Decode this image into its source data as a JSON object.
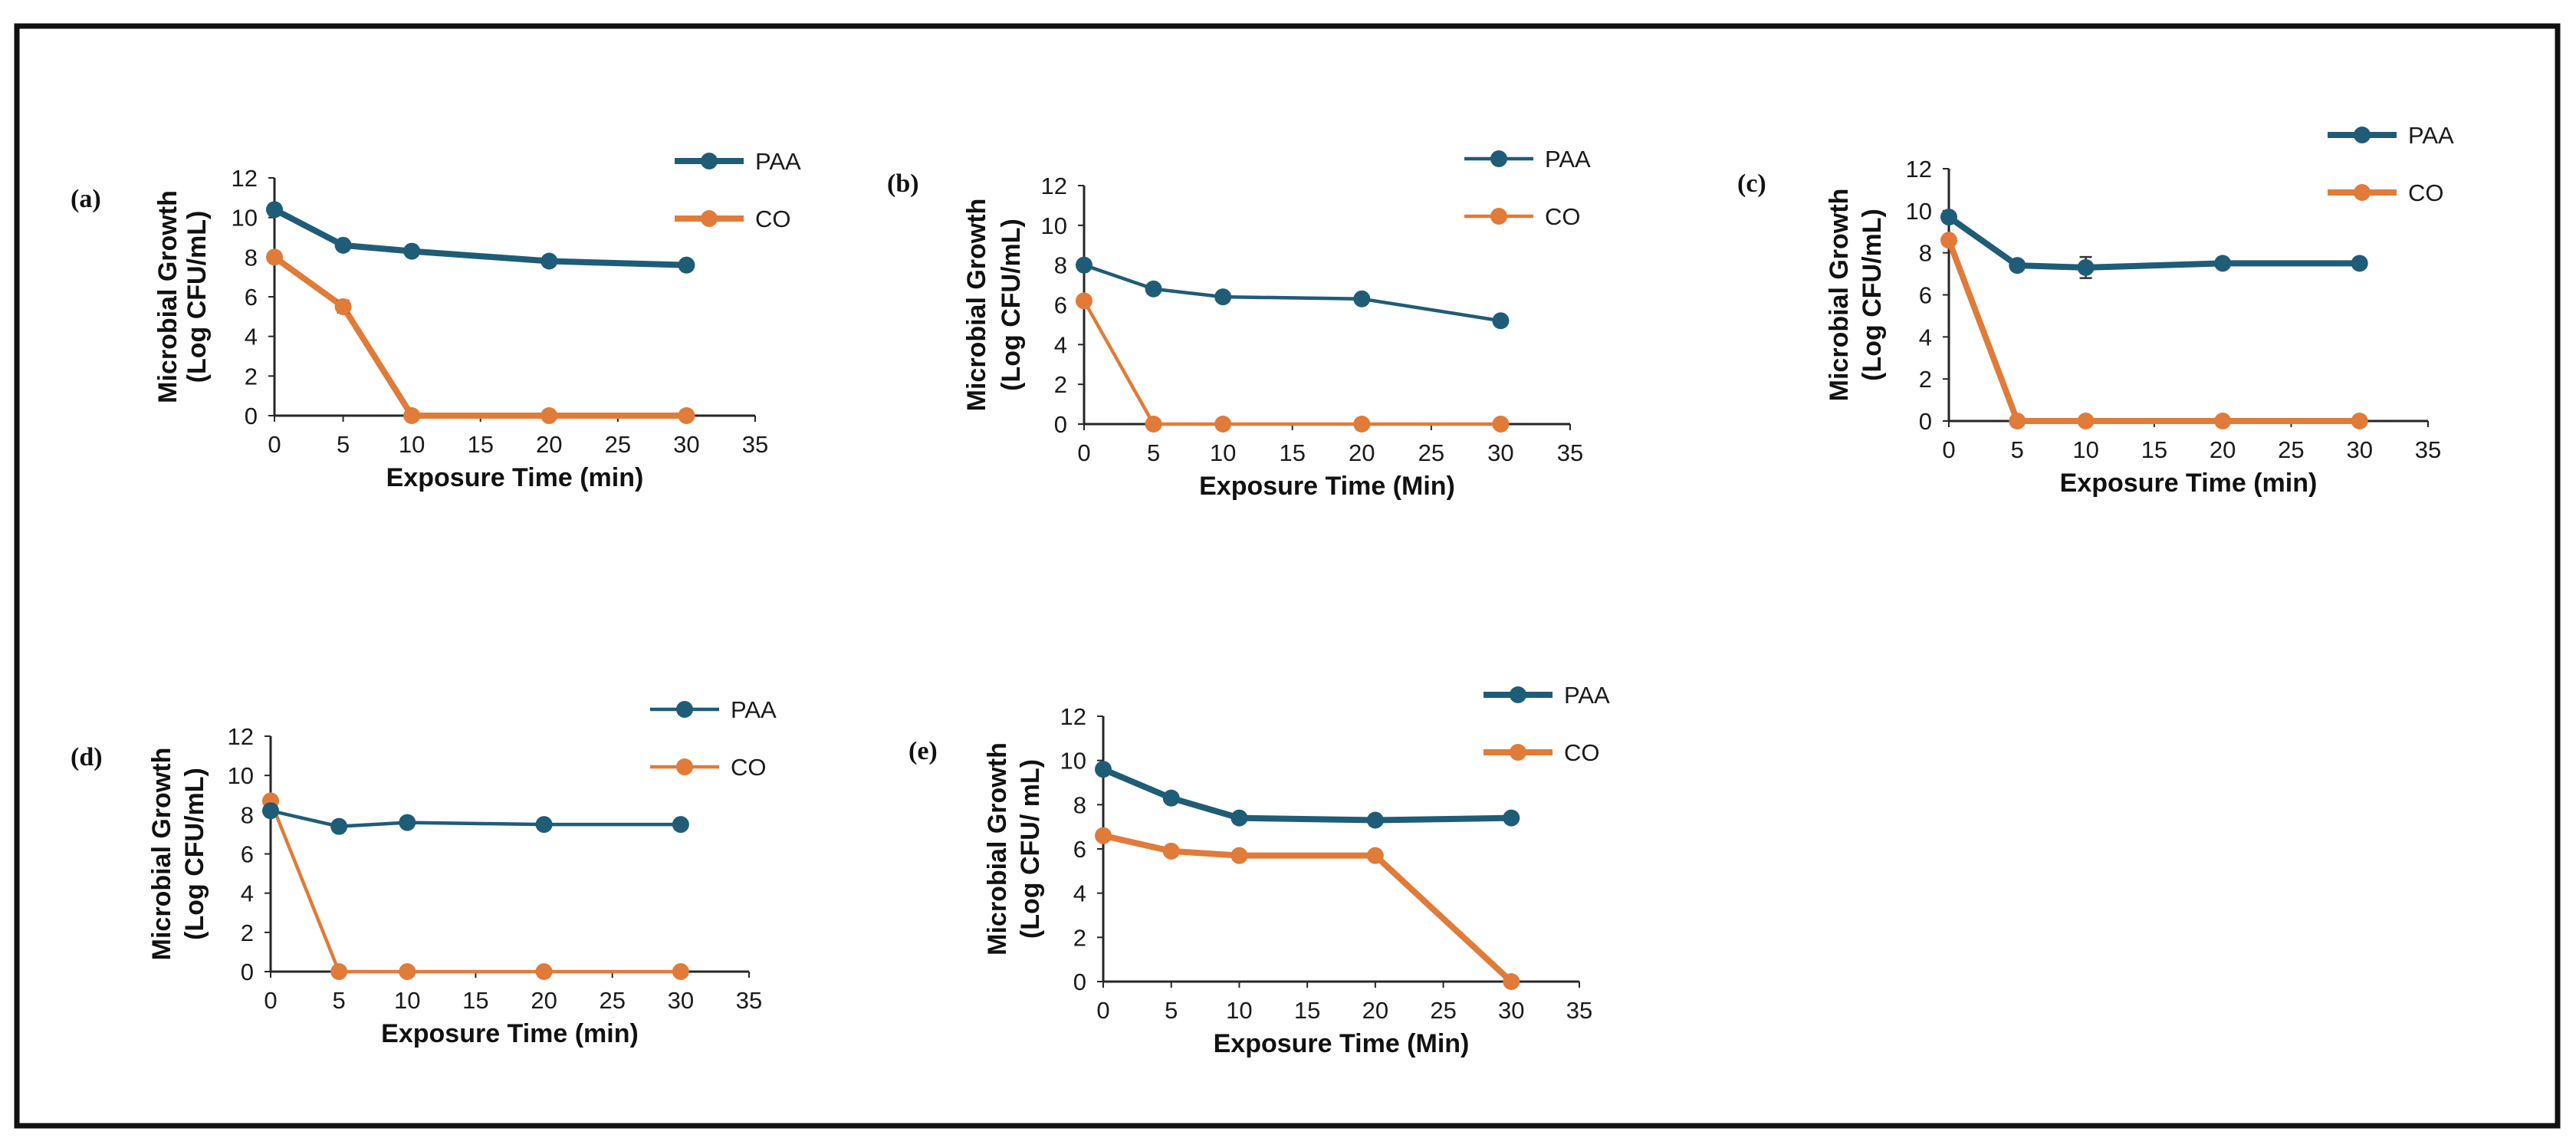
{
  "colors": {
    "PAA": "#1f5c78",
    "CO": "#e07b39",
    "axis": "#262626",
    "frame": "#111111"
  },
  "chart_data": [
    {
      "type": "line",
      "panel_label": "(a)",
      "xlabel": "Exposure Time (min)",
      "ylabel_line1": "Microbial Growth",
      "ylabel_line2": "(Log CFU/mL)",
      "x_ticks": [
        "0",
        "5",
        "10",
        "15",
        "20",
        "25",
        "30",
        "35"
      ],
      "y_ticks": [
        "0",
        "2",
        "4",
        "6",
        "8",
        "10",
        "12"
      ],
      "xlim": [
        0,
        35
      ],
      "ylim": [
        0,
        12
      ],
      "thick_lines": true,
      "series": [
        {
          "name": "PAA",
          "x": [
            0,
            5,
            10,
            20,
            30
          ],
          "y": [
            10.4,
            8.6,
            8.3,
            7.8,
            7.6
          ]
        },
        {
          "name": "CO",
          "x": [
            0,
            5,
            10,
            20,
            30
          ],
          "y": [
            8.0,
            5.5,
            0,
            0,
            0
          ],
          "error": [
            0,
            0.3,
            0,
            0,
            0
          ]
        }
      ]
    },
    {
      "type": "line",
      "panel_label": "(b)",
      "xlabel": "Exposure Time (Min)",
      "ylabel_line1": "Microbial Growth",
      "ylabel_line2": "(Log CFU/mL)",
      "x_ticks": [
        "0",
        "5",
        "10",
        "15",
        "20",
        "25",
        "30",
        "35"
      ],
      "y_ticks": [
        "0",
        "2",
        "4",
        "6",
        "8",
        "10",
        "12"
      ],
      "xlim": [
        0,
        35
      ],
      "ylim": [
        0,
        12
      ],
      "thick_lines": false,
      "series": [
        {
          "name": "PAA",
          "x": [
            0,
            5,
            10,
            20,
            30
          ],
          "y": [
            8.0,
            6.8,
            6.4,
            6.3,
            5.2
          ]
        },
        {
          "name": "CO",
          "x": [
            0,
            5,
            10,
            20,
            30
          ],
          "y": [
            6.2,
            0,
            0,
            0,
            0
          ]
        }
      ]
    },
    {
      "type": "line",
      "panel_label": "(c)",
      "xlabel": "Exposure Time (min)",
      "ylabel_line1": "Microbial Growth",
      "ylabel_line2": "(Log CFU/mL)",
      "x_ticks": [
        "0",
        "5",
        "10",
        "15",
        "20",
        "25",
        "30",
        "35"
      ],
      "y_ticks": [
        "0",
        "2",
        "4",
        "6",
        "8",
        "10",
        "12"
      ],
      "xlim": [
        0,
        35
      ],
      "ylim": [
        0,
        12
      ],
      "thick_lines": true,
      "series": [
        {
          "name": "PAA",
          "x": [
            0,
            5,
            10,
            20,
            30
          ],
          "y": [
            9.7,
            7.4,
            7.3,
            7.5,
            7.5
          ],
          "error": [
            0,
            0,
            0.5,
            0,
            0
          ]
        },
        {
          "name": "CO",
          "x": [
            0,
            5,
            10,
            20,
            30
          ],
          "y": [
            8.6,
            0,
            0,
            0,
            0
          ]
        }
      ]
    },
    {
      "type": "line",
      "panel_label": "(d)",
      "xlabel": "Exposure Time (min)",
      "ylabel_line1": "Microbial Growth",
      "ylabel_line2": "(Log CFU/mL)",
      "x_ticks": [
        "0",
        "5",
        "10",
        "15",
        "20",
        "25",
        "30",
        "35"
      ],
      "y_ticks": [
        "0",
        "2",
        "4",
        "6",
        "8",
        "10",
        "12"
      ],
      "xlim": [
        0,
        35
      ],
      "ylim": [
        0,
        12
      ],
      "thick_lines": false,
      "series": [
        {
          "name": "PAA",
          "x": [
            0,
            5,
            10,
            20,
            30
          ],
          "y": [
            8.2,
            7.4,
            7.6,
            7.5,
            7.5
          ]
        },
        {
          "name": "CO",
          "x": [
            0,
            5,
            10,
            20,
            30
          ],
          "y": [
            8.7,
            0,
            0,
            0,
            0
          ]
        }
      ]
    },
    {
      "type": "line",
      "panel_label": "(e)",
      "xlabel": "Exposure Time (Min)",
      "ylabel_line1": "Microbial Growth",
      "ylabel_line2": "(Log CFU/ mL)",
      "x_ticks": [
        "0",
        "5",
        "10",
        "15",
        "20",
        "25",
        "30",
        "35"
      ],
      "y_ticks": [
        "0",
        "2",
        "4",
        "6",
        "8",
        "10",
        "12"
      ],
      "xlim": [
        0,
        35
      ],
      "ylim": [
        0,
        12
      ],
      "thick_lines": true,
      "series": [
        {
          "name": "PAA",
          "x": [
            0,
            5,
            10,
            20,
            30
          ],
          "y": [
            9.6,
            8.3,
            7.4,
            7.3,
            7.4
          ]
        },
        {
          "name": "CO",
          "x": [
            0,
            5,
            10,
            20,
            30
          ],
          "y": [
            6.6,
            5.9,
            5.7,
            5.7,
            0
          ]
        }
      ]
    }
  ]
}
